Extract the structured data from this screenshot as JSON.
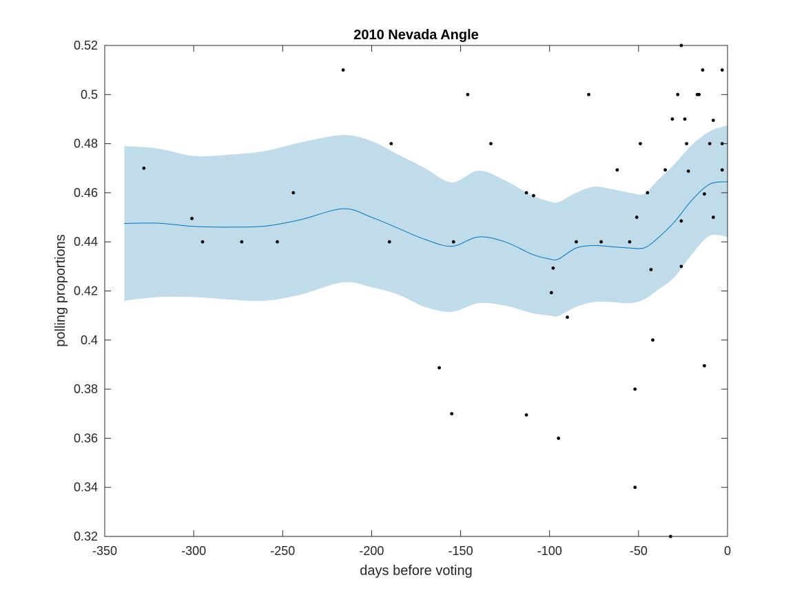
{
  "chart_data": {
    "type": "scatter",
    "title": "2010 Nevada Angle",
    "xlabel": "days before voting",
    "ylabel": "polling proportions",
    "xlim": [
      -350,
      0
    ],
    "ylim": [
      0.32,
      0.52
    ],
    "x_ticks": [
      -350,
      -300,
      -250,
      -200,
      -150,
      -100,
      -50,
      0
    ],
    "x_tick_labels": [
      "-350",
      "-300",
      "-250",
      "-200",
      "-150",
      "-100",
      "-50",
      "0"
    ],
    "y_ticks": [
      0.32,
      0.34,
      0.36,
      0.38,
      0.4,
      0.42,
      0.44,
      0.46,
      0.48,
      0.5,
      0.52
    ],
    "y_tick_labels": [
      "0.32",
      "0.34",
      "0.36",
      "0.38",
      "0.4",
      "0.42",
      "0.44",
      "0.46",
      "0.48",
      "0.5",
      "0.52"
    ],
    "grid": false,
    "colors": {
      "band_fill": "#c0dcea",
      "mean_line": "#0072bd",
      "points": "#000000",
      "axes": "#262626"
    },
    "fit_band": {
      "x": [
        -339,
        -320,
        -300,
        -280,
        -260,
        -240,
        -216,
        -200,
        -185,
        -170,
        -155,
        -140,
        -125,
        -110,
        -100,
        -95,
        -85,
        -75,
        -65,
        -55,
        -47,
        -40,
        -30,
        -20,
        -10,
        0
      ],
      "mean": [
        0.4475,
        0.4476,
        0.4463,
        0.446,
        0.4464,
        0.449,
        0.4535,
        0.45,
        0.4455,
        0.441,
        0.4382,
        0.442,
        0.44,
        0.435,
        0.433,
        0.433,
        0.4375,
        0.4385,
        0.438,
        0.4375,
        0.4375,
        0.441,
        0.448,
        0.457,
        0.4635,
        0.4645
      ],
      "upper": [
        0.479,
        0.478,
        0.475,
        0.4755,
        0.477,
        0.4805,
        0.4835,
        0.481,
        0.4755,
        0.47,
        0.4642,
        0.469,
        0.465,
        0.459,
        0.4565,
        0.4562,
        0.46,
        0.4625,
        0.4615,
        0.46,
        0.4595,
        0.4645,
        0.4715,
        0.4795,
        0.485,
        0.4875
      ],
      "lower": [
        0.416,
        0.4175,
        0.4175,
        0.4165,
        0.416,
        0.4185,
        0.4235,
        0.4215,
        0.4185,
        0.4135,
        0.4115,
        0.415,
        0.414,
        0.411,
        0.41,
        0.4098,
        0.4135,
        0.4155,
        0.4155,
        0.415,
        0.4165,
        0.42,
        0.4255,
        0.435,
        0.4425,
        0.442
      ]
    },
    "points": [
      [
        -328,
        0.47
      ],
      [
        -301,
        0.4495
      ],
      [
        -295,
        0.44
      ],
      [
        -273,
        0.44
      ],
      [
        -253,
        0.44
      ],
      [
        -244,
        0.46
      ],
      [
        -216,
        0.51
      ],
      [
        -190,
        0.44
      ],
      [
        -189,
        0.48
      ],
      [
        -162,
        0.3887
      ],
      [
        -155,
        0.37
      ],
      [
        -154,
        0.44
      ],
      [
        -146,
        0.5
      ],
      [
        -133,
        0.48
      ],
      [
        -113,
        0.46
      ],
      [
        -113,
        0.3695
      ],
      [
        -109,
        0.4588
      ],
      [
        -99,
        0.4193
      ],
      [
        -98,
        0.4293
      ],
      [
        -95,
        0.36
      ],
      [
        -90,
        0.4093
      ],
      [
        -85,
        0.44
      ],
      [
        -78,
        0.5
      ],
      [
        -71,
        0.44
      ],
      [
        -62,
        0.4693
      ],
      [
        -55,
        0.44
      ],
      [
        -52,
        0.38
      ],
      [
        -52,
        0.34
      ],
      [
        -51,
        0.45
      ],
      [
        -49,
        0.48
      ],
      [
        -45,
        0.46
      ],
      [
        -43,
        0.4287
      ],
      [
        -42,
        0.4
      ],
      [
        -35,
        0.4693
      ],
      [
        -32,
        0.32
      ],
      [
        -31,
        0.49
      ],
      [
        -28,
        0.5
      ],
      [
        -26,
        0.52
      ],
      [
        -26,
        0.4485
      ],
      [
        -26,
        0.43
      ],
      [
        -24,
        0.49
      ],
      [
        -23,
        0.48
      ],
      [
        -22,
        0.4688
      ],
      [
        -17,
        0.5
      ],
      [
        -16,
        0.5
      ],
      [
        -14,
        0.51
      ],
      [
        -13,
        0.4595
      ],
      [
        -13,
        0.3895
      ],
      [
        -10,
        0.48
      ],
      [
        -8,
        0.4895
      ],
      [
        -8,
        0.45
      ],
      [
        -3,
        0.48
      ],
      [
        -3,
        0.4693
      ],
      [
        -3,
        0.51
      ]
    ]
  }
}
